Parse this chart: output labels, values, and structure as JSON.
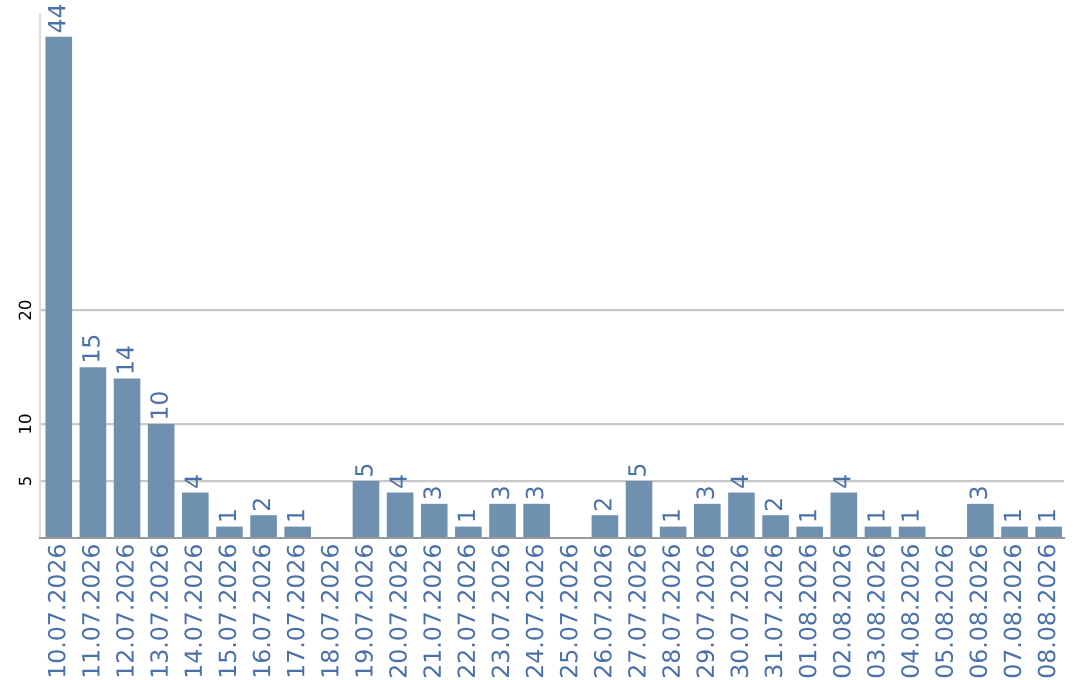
{
  "chart_data": {
    "type": "bar",
    "categories": [
      "10.07.2026",
      "11.07.2026",
      "12.07.2026",
      "13.07.2026",
      "14.07.2026",
      "15.07.2026",
      "16.07.2026",
      "17.07.2026",
      "18.07.2026",
      "19.07.2026",
      "20.07.2026",
      "21.07.2026",
      "22.07.2026",
      "23.07.2026",
      "24.07.2026",
      "25.07.2026",
      "26.07.2026",
      "27.07.2026",
      "28.07.2026",
      "29.07.2026",
      "30.07.2026",
      "31.07.2026",
      "01.08.2026",
      "02.08.2026",
      "03.08.2026",
      "04.08.2026",
      "05.08.2026",
      "06.08.2026",
      "07.08.2026",
      "08.08.2026"
    ],
    "values": [
      44,
      15,
      14,
      10,
      4,
      1,
      2,
      1,
      0,
      5,
      4,
      3,
      1,
      3,
      3,
      0,
      2,
      5,
      1,
      3,
      4,
      2,
      1,
      4,
      1,
      1,
      0,
      3,
      1,
      1
    ],
    "value_labels": [
      "44",
      "15",
      "14",
      "10",
      "4",
      "1",
      "2",
      "1",
      null,
      "5",
      "4",
      "3",
      "1",
      "3",
      "3",
      null,
      "2",
      "5",
      "1",
      "3",
      "4",
      "2",
      "1",
      "4",
      "1",
      "1",
      null,
      "3",
      "1",
      "1"
    ],
    "color": "#7090b0",
    "ylim": [
      0,
      46
    ],
    "yticks": [
      5,
      10,
      20
    ],
    "grid": "y"
  }
}
